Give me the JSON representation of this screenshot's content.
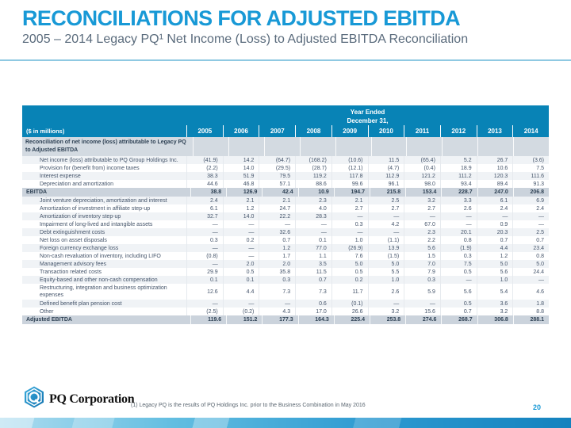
{
  "slide": {
    "title": "RECONCILIATIONS FOR ADJUSTED EBITDA",
    "subtitle": "2005 – 2014 Legacy PQ¹ Net Income (Loss) to Adjusted EBITDA Reconciliation",
    "page_number": "20",
    "footnote": "(1)   Legacy PQ is the results of PQ Holdings Inc. prior to the Business Combination in May 2016",
    "logo_text": "PQ Corporation"
  },
  "colors": {
    "title_blue": "#1899D6",
    "subtitle_gray": "#5A6B7C",
    "divider_blue": "#8FC9E2",
    "table_header_bg": "#0883B6",
    "section_row_bg": "#D3DAE1",
    "total_row_bg": "#CBD3DC",
    "stripe_bg": "#F0F3F6",
    "body_text": "#44546A"
  },
  "table": {
    "header": {
      "year_ended_line1": "Year Ended",
      "year_ended_line2": "December 31,",
      "left_label": "($ in millions)",
      "years": [
        "2005",
        "2006",
        "2007",
        "2008",
        "2009",
        "2010",
        "2011",
        "2012",
        "2013",
        "2014"
      ]
    },
    "rows": [
      {
        "type": "section",
        "label": "Reconciliation of net income (loss) attributable to Legacy PQ to Adjusted EBITDA",
        "values": [
          "",
          "",
          "",
          "",
          "",
          "",
          "",
          "",
          "",
          ""
        ]
      },
      {
        "type": "data",
        "label": "Net income (loss) attributable to PQ Group Holdings Inc.",
        "values": [
          "(41.9)",
          "14.2",
          "(64.7)",
          "(168.2)",
          "(10.6)",
          "11.5",
          "(65.4)",
          "5.2",
          "26.7",
          "(3.6)"
        ]
      },
      {
        "type": "data",
        "label": "Provision for (benefit from) income taxes",
        "values": [
          "(2.2)",
          "14.0",
          "(29.5)",
          "(28.7)",
          "(12.1)",
          "(4.7)",
          "(0.4)",
          "18.9",
          "10.6",
          "7.5"
        ]
      },
      {
        "type": "data",
        "label": "Interest expense",
        "values": [
          "38.3",
          "51.9",
          "79.5",
          "119.2",
          "117.8",
          "112.9",
          "121.2",
          "111.2",
          "120.3",
          "111.6"
        ]
      },
      {
        "type": "data",
        "label": "Depreciation and amortization",
        "values": [
          "44.6",
          "46.8",
          "57.1",
          "88.6",
          "99.6",
          "96.1",
          "98.0",
          "93.4",
          "89.4",
          "91.3"
        ]
      },
      {
        "type": "total",
        "label": "EBITDA",
        "values": [
          "38.8",
          "126.9",
          "42.4",
          "10.9",
          "194.7",
          "215.8",
          "153.4",
          "228.7",
          "247.0",
          "206.8"
        ]
      },
      {
        "type": "data",
        "label": "Joint venture depreciation, amortization and interest",
        "values": [
          "2.4",
          "2.1",
          "2.1",
          "2.3",
          "2.1",
          "2.5",
          "3.2",
          "3.3",
          "6.1",
          "6.9"
        ]
      },
      {
        "type": "data",
        "label": "Amortization of investment in affiliate step-up",
        "values": [
          "6.1",
          "1.2",
          "24.7",
          "4.0",
          "2.7",
          "2.7",
          "2.7",
          "2.6",
          "2.4",
          "2.4"
        ]
      },
      {
        "type": "data",
        "label": "Amortization of inventory step-up",
        "values": [
          "32.7",
          "14.0",
          "22.2",
          "28.3",
          "—",
          "—",
          "—",
          "—",
          "—",
          "—"
        ]
      },
      {
        "type": "data",
        "label": "Impairment of long-lived and intangible assets",
        "values": [
          "—",
          "—",
          "—",
          "—",
          "0.3",
          "4.2",
          "67.0",
          "—",
          "0.9",
          "—"
        ]
      },
      {
        "type": "data",
        "label": "Debt extinguishment costs",
        "values": [
          "—",
          "—",
          "32.6",
          "—",
          "—",
          "—",
          "2.3",
          "20.1",
          "20.3",
          "2.5"
        ]
      },
      {
        "type": "data",
        "label": "Net loss on asset disposals",
        "values": [
          "0.3",
          "0.2",
          "0.7",
          "0.1",
          "1.0",
          "(1.1)",
          "2.2",
          "0.8",
          "0.7",
          "0.7"
        ]
      },
      {
        "type": "data",
        "label": "Foreign currency exchange loss",
        "values": [
          "—",
          "—",
          "1.2",
          "77.0",
          "(26.9)",
          "13.9",
          "5.6",
          "(1.9)",
          "4.4",
          "23.4"
        ]
      },
      {
        "type": "data",
        "label": "Non-cash revaluation of inventory, including LIFO",
        "values": [
          "(0.8)",
          "—",
          "1.7",
          "1.1",
          "7.6",
          "(1.5)",
          "1.5",
          "0.3",
          "1.2",
          "0.8"
        ]
      },
      {
        "type": "data",
        "label": "Management advisory fees",
        "values": [
          "—",
          "2.0",
          "2.0",
          "3.5",
          "5.0",
          "5.0",
          "7.0",
          "7.5",
          "5.0",
          "5.0"
        ]
      },
      {
        "type": "data",
        "label": "Transaction related costs",
        "values": [
          "29.9",
          "0.5",
          "35.8",
          "11.5",
          "0.5",
          "5.5",
          "7.9",
          "0.5",
          "5.6",
          "24.4"
        ]
      },
      {
        "type": "data",
        "label": "Equity-based and other non-cash compensation",
        "values": [
          "0.1",
          "0.1",
          "0.3",
          "0.7",
          "0.2",
          "1.0",
          "0.3",
          "—",
          "1.0",
          "—"
        ]
      },
      {
        "type": "data",
        "label": "Restructuring, integration and business optimization expenses",
        "two_line": true,
        "values": [
          "12.6",
          "4.4",
          "7.3",
          "7.3",
          "11.7",
          "2.6",
          "5.9",
          "5.6",
          "5.4",
          "4.6"
        ]
      },
      {
        "type": "data",
        "label": "Defined benefit plan pension cost",
        "values": [
          "—",
          "—",
          "—",
          "0.6",
          "(0.1)",
          "—",
          "—",
          "0.5",
          "3.6",
          "1.8"
        ]
      },
      {
        "type": "data",
        "label": "Other",
        "values": [
          "(2.5)",
          "(0.2)",
          "4.3",
          "17.0",
          "26.6",
          "3.2",
          "15.6",
          "0.7",
          "3.2",
          "8.8"
        ]
      },
      {
        "type": "total",
        "label": "Adjusted EBITDA",
        "values": [
          "119.6",
          "151.2",
          "177.3",
          "164.3",
          "225.4",
          "253.8",
          "274.6",
          "268.7",
          "306.8",
          "288.1"
        ]
      }
    ]
  }
}
